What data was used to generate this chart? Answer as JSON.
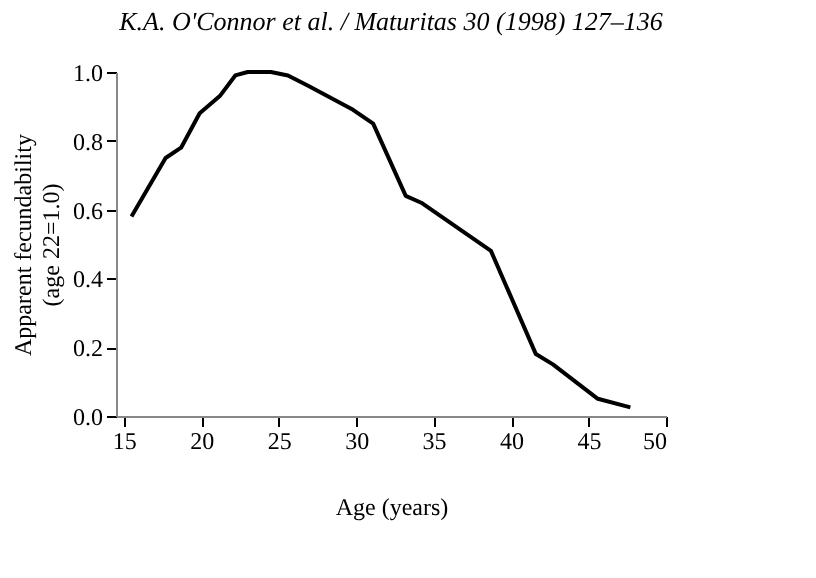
{
  "chart_data": {
    "type": "line",
    "annotations": [
      "K.A. O'Connor et al. / Maturitas 30 (1998) 127–136"
    ],
    "xlabel": "Age (years)",
    "ylabel": "Apparent fecundability (age 22=1.0)",
    "x": [
      15.5,
      17.7,
      18.7,
      19.9,
      21.2,
      22.2,
      23,
      24.5,
      25.6,
      26.9,
      29.8,
      31.1,
      33.2,
      34.2,
      38.7,
      41.6,
      42.7,
      45.6,
      47.7
    ],
    "series": [
      {
        "color": "#000000",
        "values": [
          0.58,
          0.75,
          0.78,
          0.88,
          0.93,
          0.99,
          1.0,
          1.0,
          0.99,
          0.96,
          0.89,
          0.85,
          0.64,
          0.62,
          0.48,
          0.18,
          0.15,
          0.05,
          0.025
        ]
      }
    ],
    "xlim": [
      14.5,
      50
    ],
    "ylim": [
      0,
      1.0
    ],
    "xticks": [
      15,
      20,
      25,
      30,
      35,
      40,
      45,
      50
    ],
    "yticks": [
      {
        "value": 0,
        "label": "0.0"
      },
      {
        "value": 0.2,
        "label": "0.2"
      },
      {
        "value": 0.4,
        "label": "0.4"
      },
      {
        "value": 0.6,
        "label": "0.6"
      },
      {
        "value": 0.8,
        "label": "0.8"
      },
      {
        "value": 1.0,
        "label": "1.0"
      }
    ],
    "grid": false,
    "marker": "none",
    "line_style": "solid"
  }
}
